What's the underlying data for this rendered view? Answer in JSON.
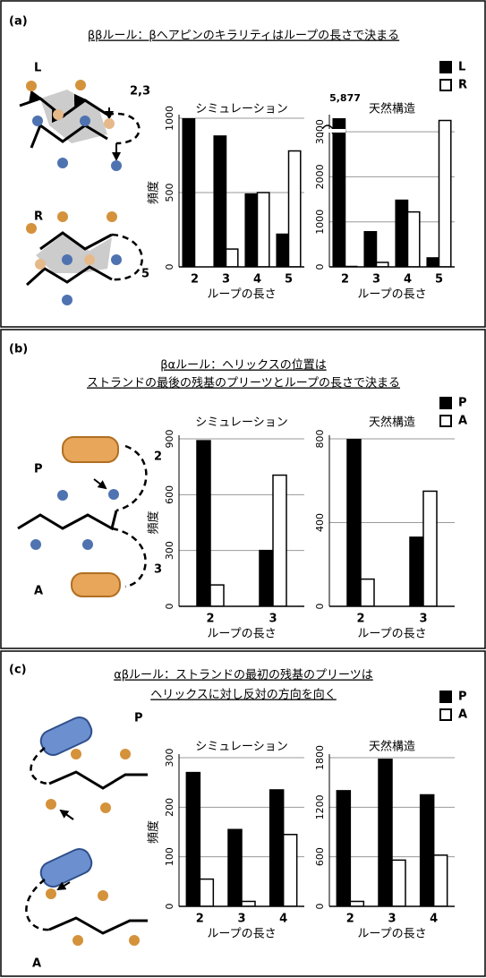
{
  "panels": [
    {
      "label": "(a)",
      "title": [
        "ββルール：βヘアピンのキラリティはループの長さで決まる"
      ],
      "diagram_labels": [
        "L",
        "2,3",
        "R",
        "5"
      ]
    },
    {
      "label": "(b)",
      "title": [
        "βαルール：ヘリックスの位置は",
        "ストランドの最後の残基のプリーツとループの長さで決まる"
      ],
      "diagram_labels": [
        "P",
        "2",
        "3",
        "A"
      ]
    },
    {
      "label": "(c)",
      "title": [
        "αβルール：ストランドの最初の残基のプリーツは",
        "ヘリックスに対し反対の方向を向く"
      ],
      "diagram_labels": [
        "P",
        "A"
      ]
    }
  ],
  "chart_data": [
    {
      "type": "bar",
      "title": "シミュレーション",
      "xlabel": "ループの長さ",
      "ylabel": "頻度",
      "categories": [
        "2",
        "3",
        "4",
        "5"
      ],
      "series": [
        {
          "name": "L",
          "color": "#000000",
          "values": [
            1000,
            880,
            490,
            220
          ]
        },
        {
          "name": "R",
          "color": "#ffffff",
          "values": [
            0,
            120,
            500,
            780
          ]
        }
      ],
      "ylim": [
        0,
        1000
      ],
      "yticks": [
        0,
        500,
        1000
      ],
      "grid": true
    },
    {
      "type": "bar",
      "title": "天然構造",
      "xlabel": "ループの長さ",
      "categories": [
        "2",
        "3",
        "4",
        "5"
      ],
      "series": [
        {
          "name": "L",
          "color": "#000000",
          "values": [
            5877,
            780,
            1480,
            200
          ],
          "value_labels": [
            "5,877",
            null,
            null,
            null
          ]
        },
        {
          "name": "R",
          "color": "#ffffff",
          "values": [
            10,
            100,
            1220,
            3250
          ]
        }
      ],
      "ylim": [
        0,
        3300
      ],
      "yticks": [
        0,
        1000,
        2000,
        3000
      ],
      "grid": true
    },
    {
      "type": "bar",
      "title": "シミュレーション",
      "xlabel": "ループの長さ",
      "ylabel": "頻度",
      "categories": [
        "2",
        "3"
      ],
      "series": [
        {
          "name": "P",
          "color": "#000000",
          "values": [
            890,
            300
          ]
        },
        {
          "name": "A",
          "color": "#ffffff",
          "values": [
            115,
            705
          ]
        }
      ],
      "ylim": [
        0,
        900
      ],
      "yticks": [
        0,
        300,
        600,
        900
      ],
      "grid": true
    },
    {
      "type": "bar",
      "title": "天然構造",
      "xlabel": "ループの長さ",
      "categories": [
        "2",
        "3"
      ],
      "series": [
        {
          "name": "P",
          "color": "#000000",
          "values": [
            800,
            330
          ]
        },
        {
          "name": "A",
          "color": "#ffffff",
          "values": [
            130,
            550
          ]
        }
      ],
      "ylim": [
        0,
        800
      ],
      "yticks": [
        0,
        400,
        800
      ],
      "grid": true
    },
    {
      "type": "bar",
      "title": "シミュレーション",
      "xlabel": "ループの長さ",
      "ylabel": "頻度",
      "categories": [
        "2",
        "3",
        "4"
      ],
      "series": [
        {
          "name": "P",
          "color": "#000000",
          "values": [
            270,
            155,
            235
          ]
        },
        {
          "name": "A",
          "color": "#ffffff",
          "values": [
            55,
            10,
            145
          ]
        }
      ],
      "ylim": [
        0,
        300
      ],
      "yticks": [
        0,
        100,
        200,
        300
      ],
      "grid": true
    },
    {
      "type": "bar",
      "title": "天然構造",
      "xlabel": "ループの長さ",
      "categories": [
        "2",
        "3",
        "4"
      ],
      "series": [
        {
          "name": "P",
          "color": "#000000",
          "values": [
            1400,
            1780,
            1350
          ]
        },
        {
          "name": "A",
          "color": "#ffffff",
          "values": [
            60,
            560,
            620
          ]
        }
      ],
      "ylim": [
        0,
        1800
      ],
      "yticks": [
        0,
        600,
        1200,
        1800
      ],
      "grid": true
    }
  ]
}
